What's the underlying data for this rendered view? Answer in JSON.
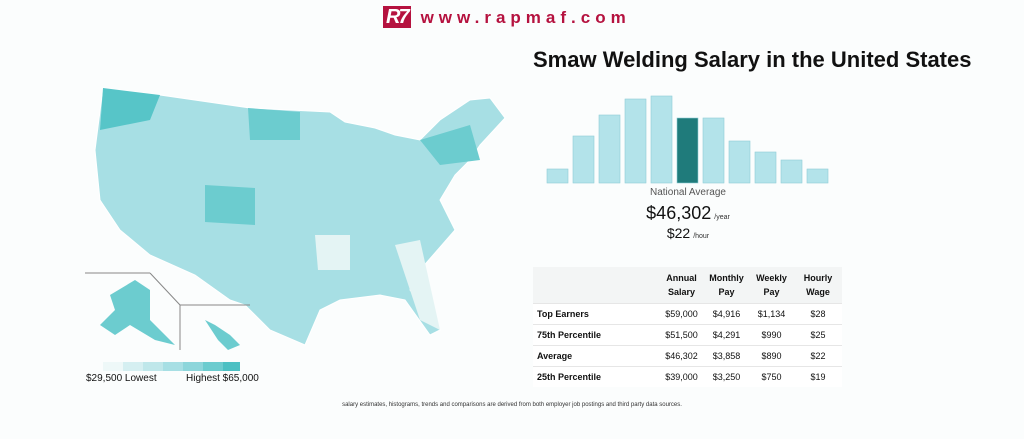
{
  "header": {
    "logo_mark": "R7",
    "site": "www.rapmaf.com"
  },
  "title": "Smaw Welding Salary in the United States",
  "map_legend": {
    "low": "$29,500 Lowest",
    "high": "Highest $65,000"
  },
  "histogram": {
    "type": "bar",
    "values": [
      14,
      47,
      68,
      84,
      87,
      65,
      65,
      42,
      31,
      23,
      14
    ],
    "colors": [
      "#b3e3ea",
      "#b3e3ea",
      "#b3e3ea",
      "#b3e3ea",
      "#b3e3ea",
      "#1f7b7b",
      "#b3e3ea",
      "#b3e3ea",
      "#b3e3ea",
      "#b3e3ea",
      "#b3e3ea"
    ],
    "caption": "National Average",
    "annual": "$46,302",
    "annual_unit": "/year",
    "hourly": "$22",
    "hourly_unit": "/hour"
  },
  "table": {
    "header": [
      "",
      "Annual Salary",
      "Monthly Pay",
      "Weekly Pay",
      "Hourly Wage"
    ],
    "rows": [
      [
        "Top Earners",
        "$59,000",
        "$4,916",
        "$1,134",
        "$28"
      ],
      [
        "75th Percentile",
        "$51,500",
        "$4,291",
        "$990",
        "$25"
      ],
      [
        "Average",
        "$46,302",
        "$3,858",
        "$890",
        "$22"
      ],
      [
        "25th Percentile",
        "$39,000",
        "$3,250",
        "$750",
        "$19"
      ]
    ]
  },
  "footnote": "salary estimates, histograms, trends and comparisons are derived from both employer job postings and third party data sources."
}
